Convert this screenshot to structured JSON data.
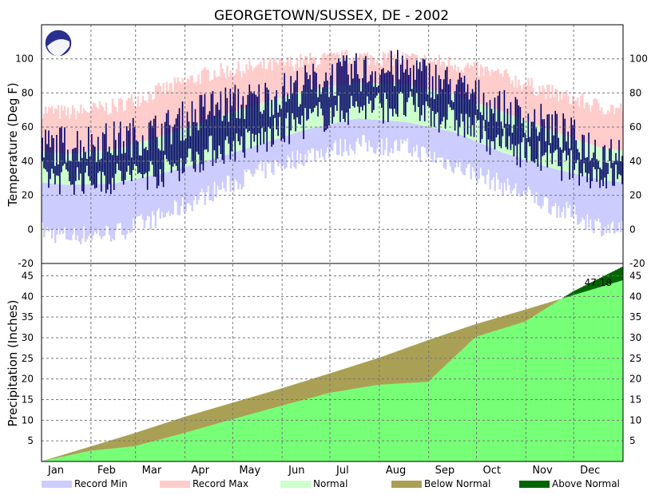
{
  "chart_data": {
    "type": "area",
    "title": "GEORGETOWN/SUSSEX, DE - 2002",
    "months": [
      "Jan",
      "Feb",
      "Mar",
      "Apr",
      "May",
      "Jun",
      "Jul",
      "Aug",
      "Sep",
      "Oct",
      "Nov",
      "Dec"
    ],
    "legend": [
      {
        "label": "Record Min",
        "color": "#ccccff"
      },
      {
        "label": "Record Max",
        "color": "#ffcccc"
      },
      {
        "label": "Normal",
        "color": "#ccffcc"
      },
      {
        "label": "Below Normal",
        "color": "#aaa055"
      },
      {
        "label": "Above Normal",
        "color": "#006600"
      }
    ],
    "temperature": {
      "ylabel": "Temperature (Deg F)",
      "ylim": [
        -20,
        120
      ],
      "ticks": [
        -20,
        0,
        20,
        40,
        60,
        80,
        100
      ],
      "observed_color": "#000066",
      "normal_high_monthly": [
        44,
        47,
        55,
        65,
        74,
        82,
        86,
        85,
        79,
        69,
        58,
        48
      ],
      "normal_low_monthly": [
        26,
        27,
        33,
        41,
        50,
        59,
        65,
        63,
        57,
        45,
        36,
        29
      ],
      "record_high_monthly": [
        68,
        72,
        82,
        92,
        95,
        99,
        101,
        100,
        97,
        90,
        80,
        72
      ],
      "record_low_monthly": [
        -4,
        -2,
        8,
        22,
        34,
        44,
        50,
        48,
        38,
        26,
        14,
        2
      ],
      "observed_high_monthly": [
        50,
        52,
        58,
        72,
        76,
        86,
        92,
        94,
        84,
        70,
        60,
        46
      ],
      "observed_low_monthly": [
        30,
        30,
        34,
        46,
        52,
        64,
        72,
        72,
        64,
        50,
        40,
        32
      ]
    },
    "precipitation": {
      "ylabel": "Precipitation (Inches)",
      "ylim": [
        0,
        48
      ],
      "ticks": [
        5,
        10,
        15,
        20,
        25,
        30,
        35,
        40,
        45
      ],
      "normal_color": "#77ff77",
      "annotation": "47.18",
      "normal_cumulative_month_end": [
        3.6,
        6.9,
        10.8,
        14.2,
        17.7,
        21.3,
        25.1,
        29.4,
        33.3,
        36.8,
        40.3,
        43.9
      ],
      "observed_cumulative_month_end": [
        2.6,
        3.7,
        6.9,
        10.2,
        13.5,
        16.6,
        18.6,
        19.3,
        30.2,
        33.9,
        41.2,
        47.18
      ]
    }
  }
}
